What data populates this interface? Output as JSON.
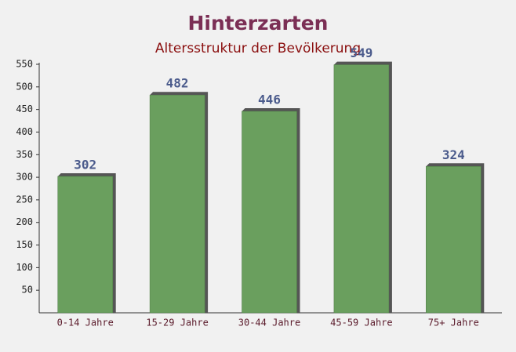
{
  "chart_data": {
    "type": "bar",
    "title": "Hinterzarten",
    "subtitle": "Altersstruktur der Bevölkerung",
    "categories": [
      "0-14 Jahre",
      "15-29 Jahre",
      "30-44 Jahre",
      "45-59 Jahre",
      "75+ Jahre"
    ],
    "values": [
      302,
      482,
      446,
      549,
      324
    ],
    "color": "#6a9f5e",
    "ylim": [
      0,
      550
    ],
    "yticks": [
      50,
      100,
      150,
      200,
      250,
      300,
      350,
      400,
      450,
      500,
      550
    ]
  }
}
